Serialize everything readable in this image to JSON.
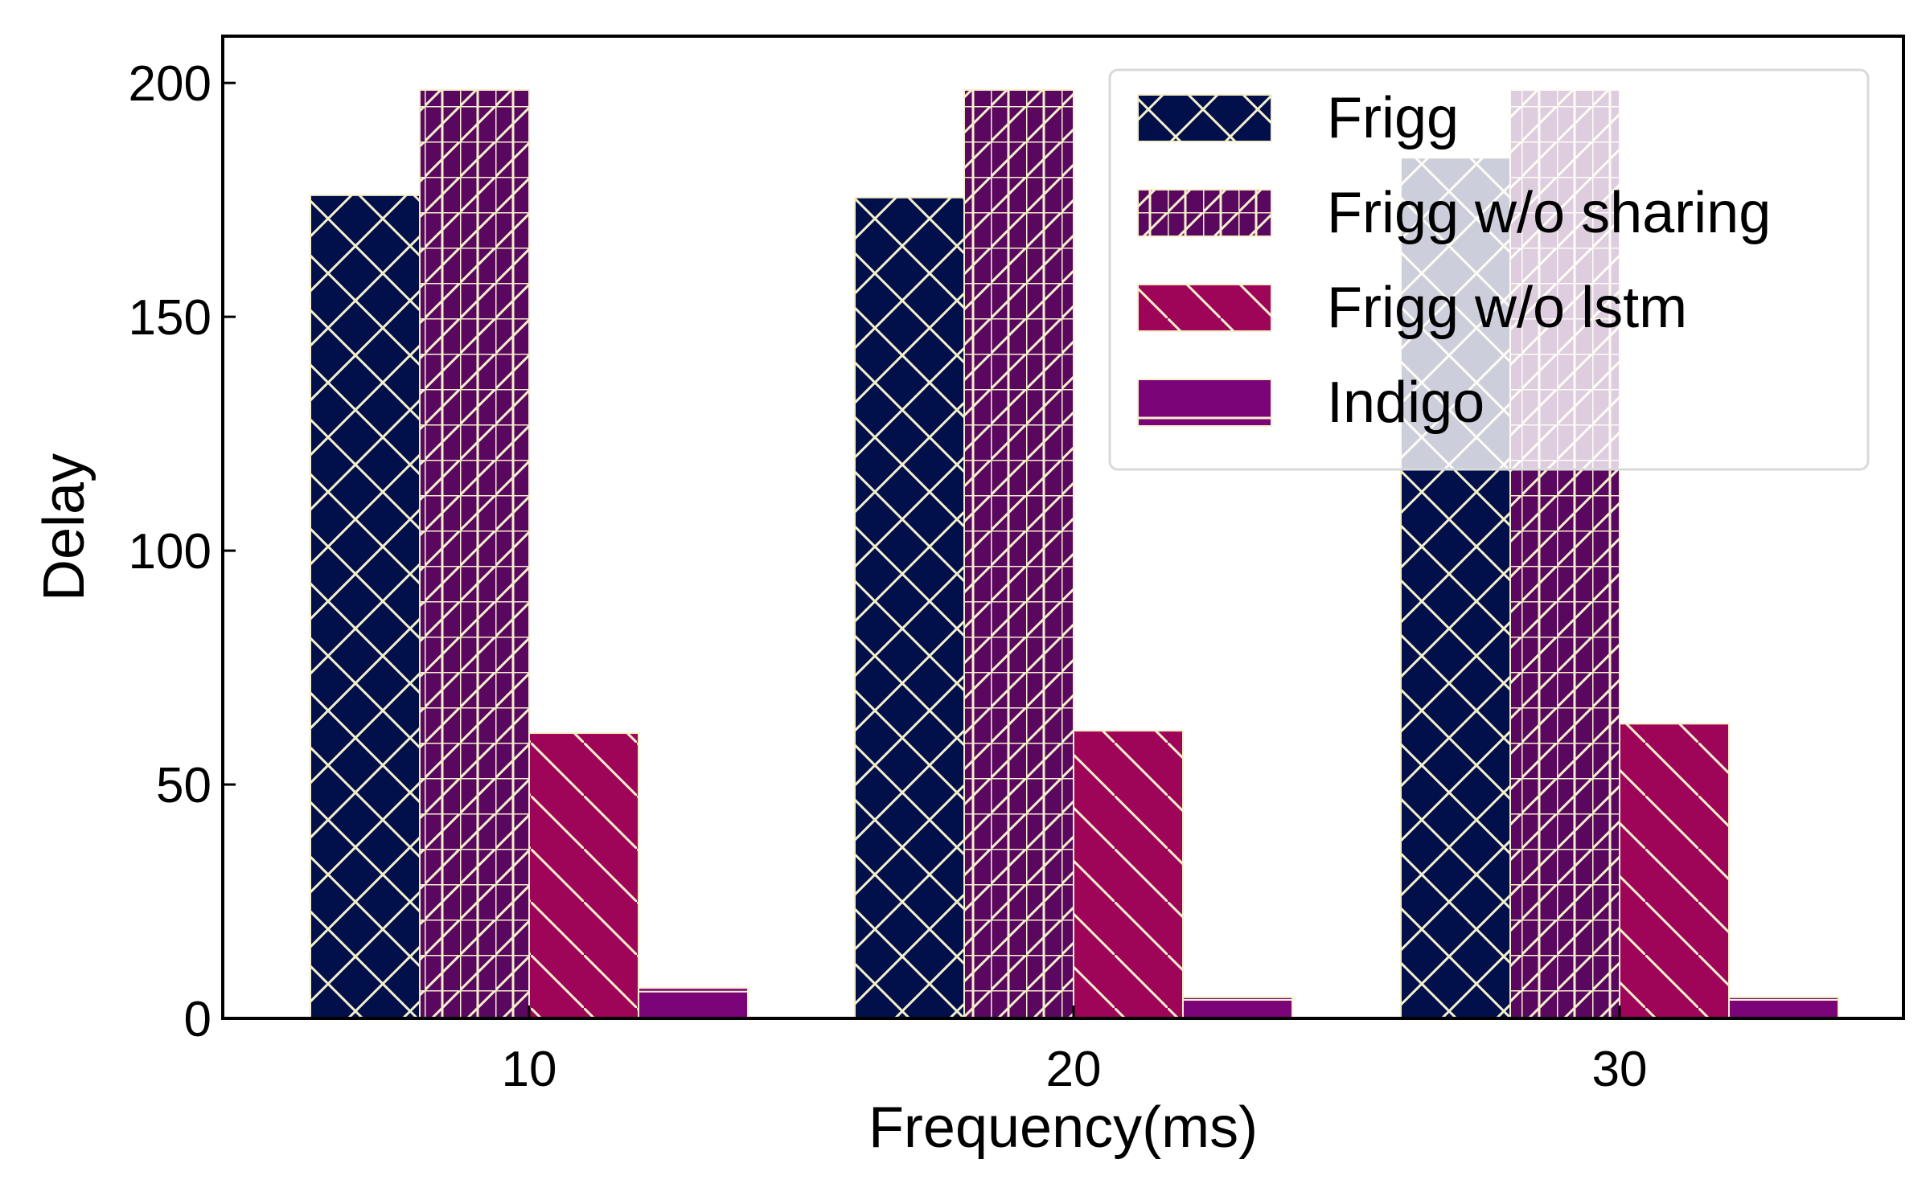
{
  "chart_data": {
    "type": "bar",
    "title": "",
    "xlabel": "Frequency(ms)",
    "ylabel": "Delay",
    "categories": [
      "10",
      "20",
      "30"
    ],
    "ylim": [
      0,
      210
    ],
    "yticks": [
      "0",
      "50",
      "100",
      "150",
      "200"
    ],
    "grid": false,
    "legend_position": "top-right",
    "series": [
      {
        "name": "Frigg",
        "values": [
          176,
          175.5,
          184
        ],
        "color": "#01104b",
        "hatch": "diamond-cross"
      },
      {
        "name": "Frigg w/o sharing",
        "values": [
          198.5,
          198.5,
          198.5
        ],
        "color": "#5a075f",
        "hatch": "grid-slash"
      },
      {
        "name": "Frigg w/o lstm",
        "values": [
          61,
          61.5,
          63
        ],
        "color": "#9e0458",
        "hatch": "backslash"
      },
      {
        "name": "Indigo",
        "values": [
          6.5,
          4.5,
          4.5
        ],
        "color": "#7c0479",
        "hatch": "solid"
      }
    ]
  }
}
